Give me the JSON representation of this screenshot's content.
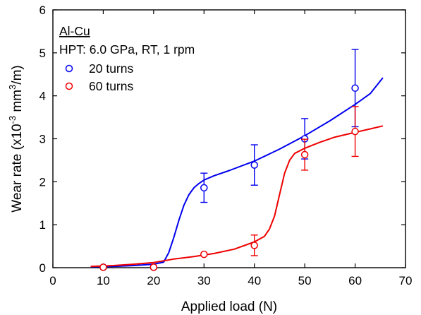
{
  "chart_data": {
    "type": "scatter",
    "annotations": {
      "material": "Al-Cu",
      "condition": "HPT: 6.0 GPa, RT, 1 rpm"
    },
    "xlabel": "Applied load (N)",
    "ylabel_main": "Wear rate (x10",
    "ylabel_exp1": "-3",
    "ylabel_mid": " mm",
    "ylabel_exp2": "3",
    "ylabel_end": "/m)",
    "xlim": [
      0,
      70
    ],
    "ylim": [
      0,
      6
    ],
    "xticks": [
      "0",
      "10",
      "20",
      "30",
      "40",
      "50",
      "60",
      "70"
    ],
    "yticks": [
      "0",
      "1",
      "2",
      "3",
      "4",
      "5",
      "6"
    ],
    "grid": false,
    "legend_position": "top-left",
    "series": [
      {
        "name": "20 turns",
        "color": "#0000ee",
        "marker": "open-circle",
        "x": [
          10,
          20,
          30,
          40,
          50,
          60
        ],
        "y": [
          0.01,
          0.01,
          1.86,
          2.39,
          3.0,
          4.18
        ],
        "yerr": [
          0,
          0,
          0.34,
          0.47,
          0.47,
          0.9
        ],
        "trend": [
          [
            7.5,
            0.02
          ],
          [
            12,
            0.03
          ],
          [
            16,
            0.05
          ],
          [
            20,
            0.08
          ],
          [
            22,
            0.13
          ],
          [
            23,
            0.35
          ],
          [
            24,
            0.7
          ],
          [
            25,
            1.1
          ],
          [
            26,
            1.45
          ],
          [
            27,
            1.7
          ],
          [
            28,
            1.86
          ],
          [
            29,
            1.96
          ],
          [
            30,
            2.04
          ],
          [
            32,
            2.14
          ],
          [
            35,
            2.26
          ],
          [
            40,
            2.48
          ],
          [
            45,
            2.76
          ],
          [
            50,
            3.07
          ],
          [
            55,
            3.42
          ],
          [
            60,
            3.8
          ],
          [
            63,
            4.05
          ],
          [
            65.5,
            4.42
          ]
        ]
      },
      {
        "name": "60 turns",
        "color": "#ee0000",
        "marker": "open-circle",
        "x": [
          10,
          20,
          30,
          40,
          50,
          60
        ],
        "y": [
          0.01,
          0.01,
          0.31,
          0.52,
          2.63,
          3.17
        ],
        "yerr": [
          0,
          0,
          0,
          0.24,
          0.36,
          0.58
        ],
        "trend": [
          [
            7.5,
            0.03
          ],
          [
            12,
            0.05
          ],
          [
            16,
            0.08
          ],
          [
            20,
            0.12
          ],
          [
            24,
            0.2
          ],
          [
            28,
            0.26
          ],
          [
            32,
            0.33
          ],
          [
            36,
            0.43
          ],
          [
            40,
            0.6
          ],
          [
            42,
            0.73
          ],
          [
            43,
            0.9
          ],
          [
            44,
            1.2
          ],
          [
            45,
            1.7
          ],
          [
            46,
            2.2
          ],
          [
            47,
            2.5
          ],
          [
            48,
            2.66
          ],
          [
            50,
            2.78
          ],
          [
            53,
            2.92
          ],
          [
            56,
            3.04
          ],
          [
            60,
            3.15
          ],
          [
            63,
            3.23
          ],
          [
            65.5,
            3.3
          ]
        ]
      }
    ]
  }
}
